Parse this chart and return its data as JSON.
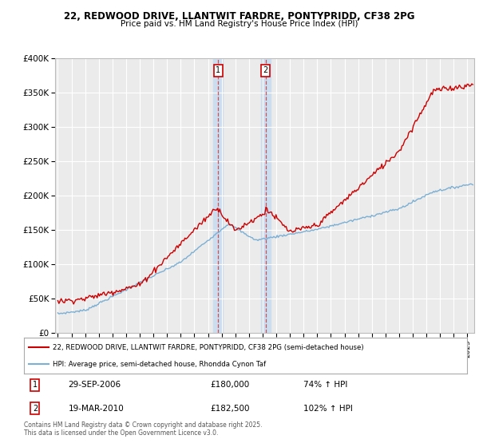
{
  "title1": "22, REDWOOD DRIVE, LLANTWIT FARDRE, PONTYPRIDD, CF38 2PG",
  "title2": "Price paid vs. HM Land Registry's House Price Index (HPI)",
  "red_label": "22, REDWOOD DRIVE, LLANTWIT FARDRE, PONTYPRIDD, CF38 2PG (semi-detached house)",
  "blue_label": "HPI: Average price, semi-detached house, Rhondda Cynon Taf",
  "footer": "Contains HM Land Registry data © Crown copyright and database right 2025.\nThis data is licensed under the Open Government Licence v3.0.",
  "marker1_date": "29-SEP-2006",
  "marker1_price": "£180,000",
  "marker1_hpi": "74% ↑ HPI",
  "marker2_date": "19-MAR-2010",
  "marker2_price": "£182,500",
  "marker2_hpi": "102% ↑ HPI",
  "marker1_x": 2006.75,
  "marker2_x": 2010.22,
  "ylim": [
    0,
    400000
  ],
  "xlim": [
    1994.8,
    2025.5
  ],
  "bg_color": "#ffffff",
  "plot_bg": "#ebebeb",
  "red_color": "#cc0000",
  "blue_color": "#7bafd4",
  "grid_color": "#ffffff",
  "marker_fill_color": "#ccddf0"
}
